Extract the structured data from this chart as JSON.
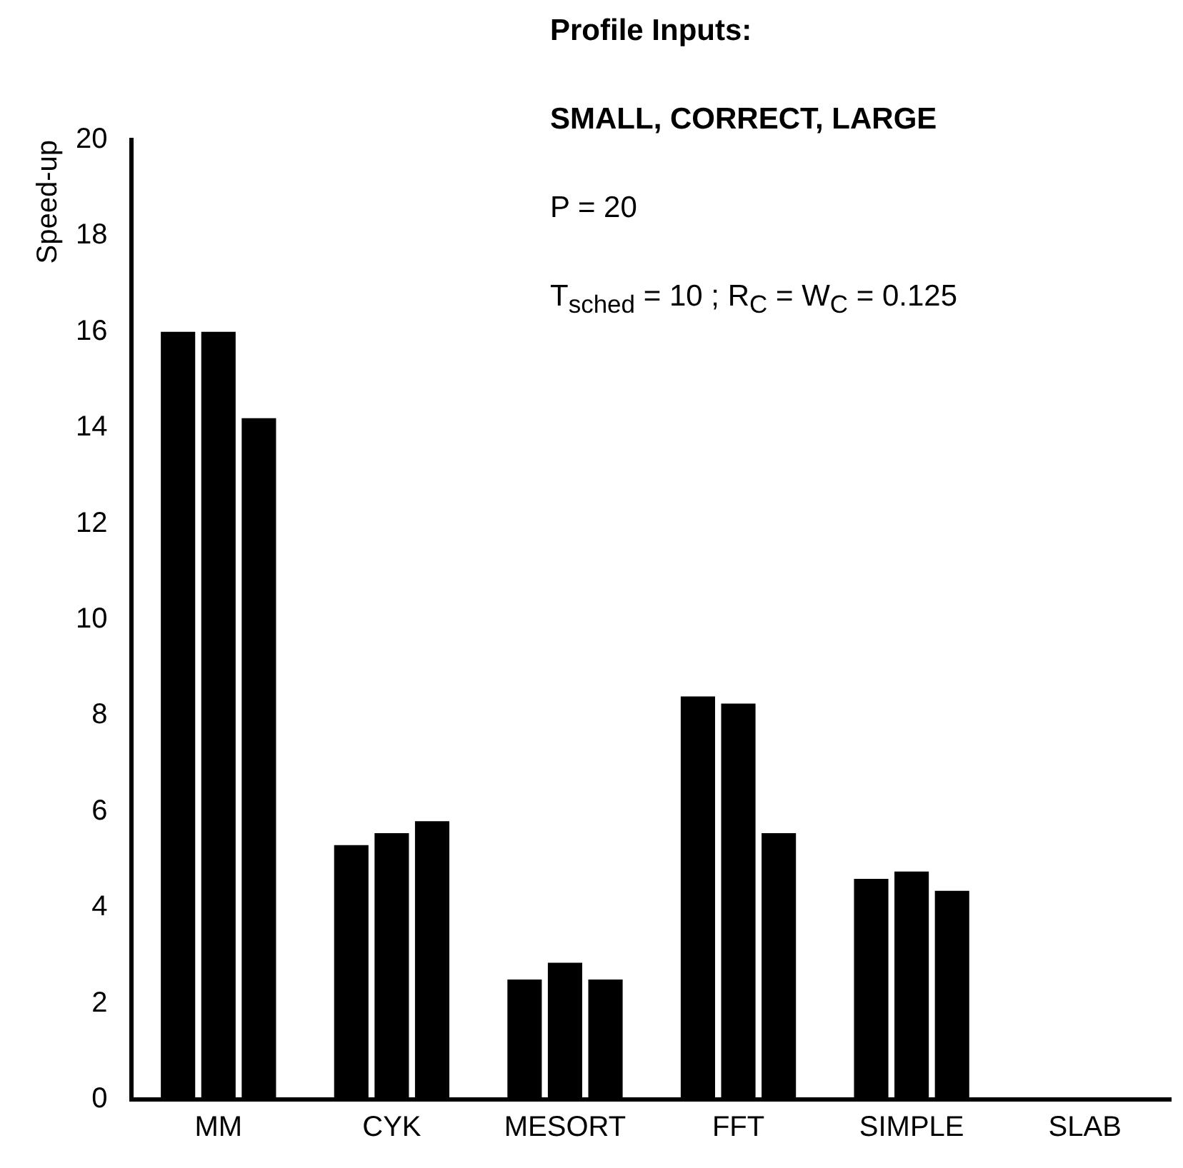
{
  "chart_data": {
    "type": "bar",
    "ylabel": "Speed-up",
    "categories": [
      "MM",
      "CYK",
      "MESORT",
      "FFT",
      "SIMPLE",
      "SLAB"
    ],
    "series": [
      {
        "color": "#000000",
        "values": [
          16.0,
          5.3,
          2.5,
          8.4,
          4.6,
          null
        ]
      },
      {
        "color": "#000000",
        "values": [
          16.0,
          5.55,
          2.85,
          8.25,
          4.75,
          null
        ]
      },
      {
        "color": "#000000",
        "values": [
          14.2,
          5.8,
          2.5,
          5.55,
          4.35,
          null
        ]
      }
    ],
    "ylim": [
      0,
      20
    ],
    "yticks": [
      0,
      2,
      4,
      6,
      8,
      10,
      12,
      14,
      16,
      18,
      20
    ],
    "grid": false,
    "legend": false,
    "annotations": [
      "Profile Inputs:",
      "SMALL, CORRECT, LARGE",
      "P = 20",
      "T$_{sched}$ = 10 ; R$_{C}$ = W$_{C}$ = 0.125"
    ]
  }
}
